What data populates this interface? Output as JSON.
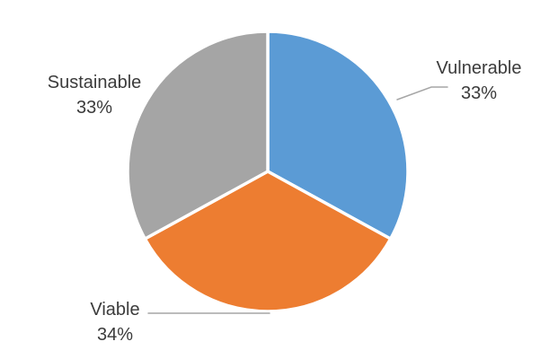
{
  "chart_data": {
    "type": "pie",
    "title": "",
    "categories": [
      "Vulnerable",
      "Viable",
      "Sustainable"
    ],
    "values": [
      33,
      34,
      33
    ],
    "slices": [
      {
        "label": "Vulnerable",
        "value": 33,
        "pct_label": "33%",
        "color": "#5B9BD5"
      },
      {
        "label": "Viable",
        "value": 34,
        "pct_label": "34%",
        "color": "#ED7D31"
      },
      {
        "label": "Sustainable",
        "value": 33,
        "pct_label": "33%",
        "color": "#A5A5A5"
      }
    ],
    "start_angle_deg": 0,
    "direction": "clockwise",
    "legend": "none",
    "label_position": "outside",
    "slice_border_color": "#FFFFFF",
    "leader_line_color": "#A6A6A6",
    "label_text_color": "#3B3B3B",
    "background": "#FFFFFF"
  }
}
